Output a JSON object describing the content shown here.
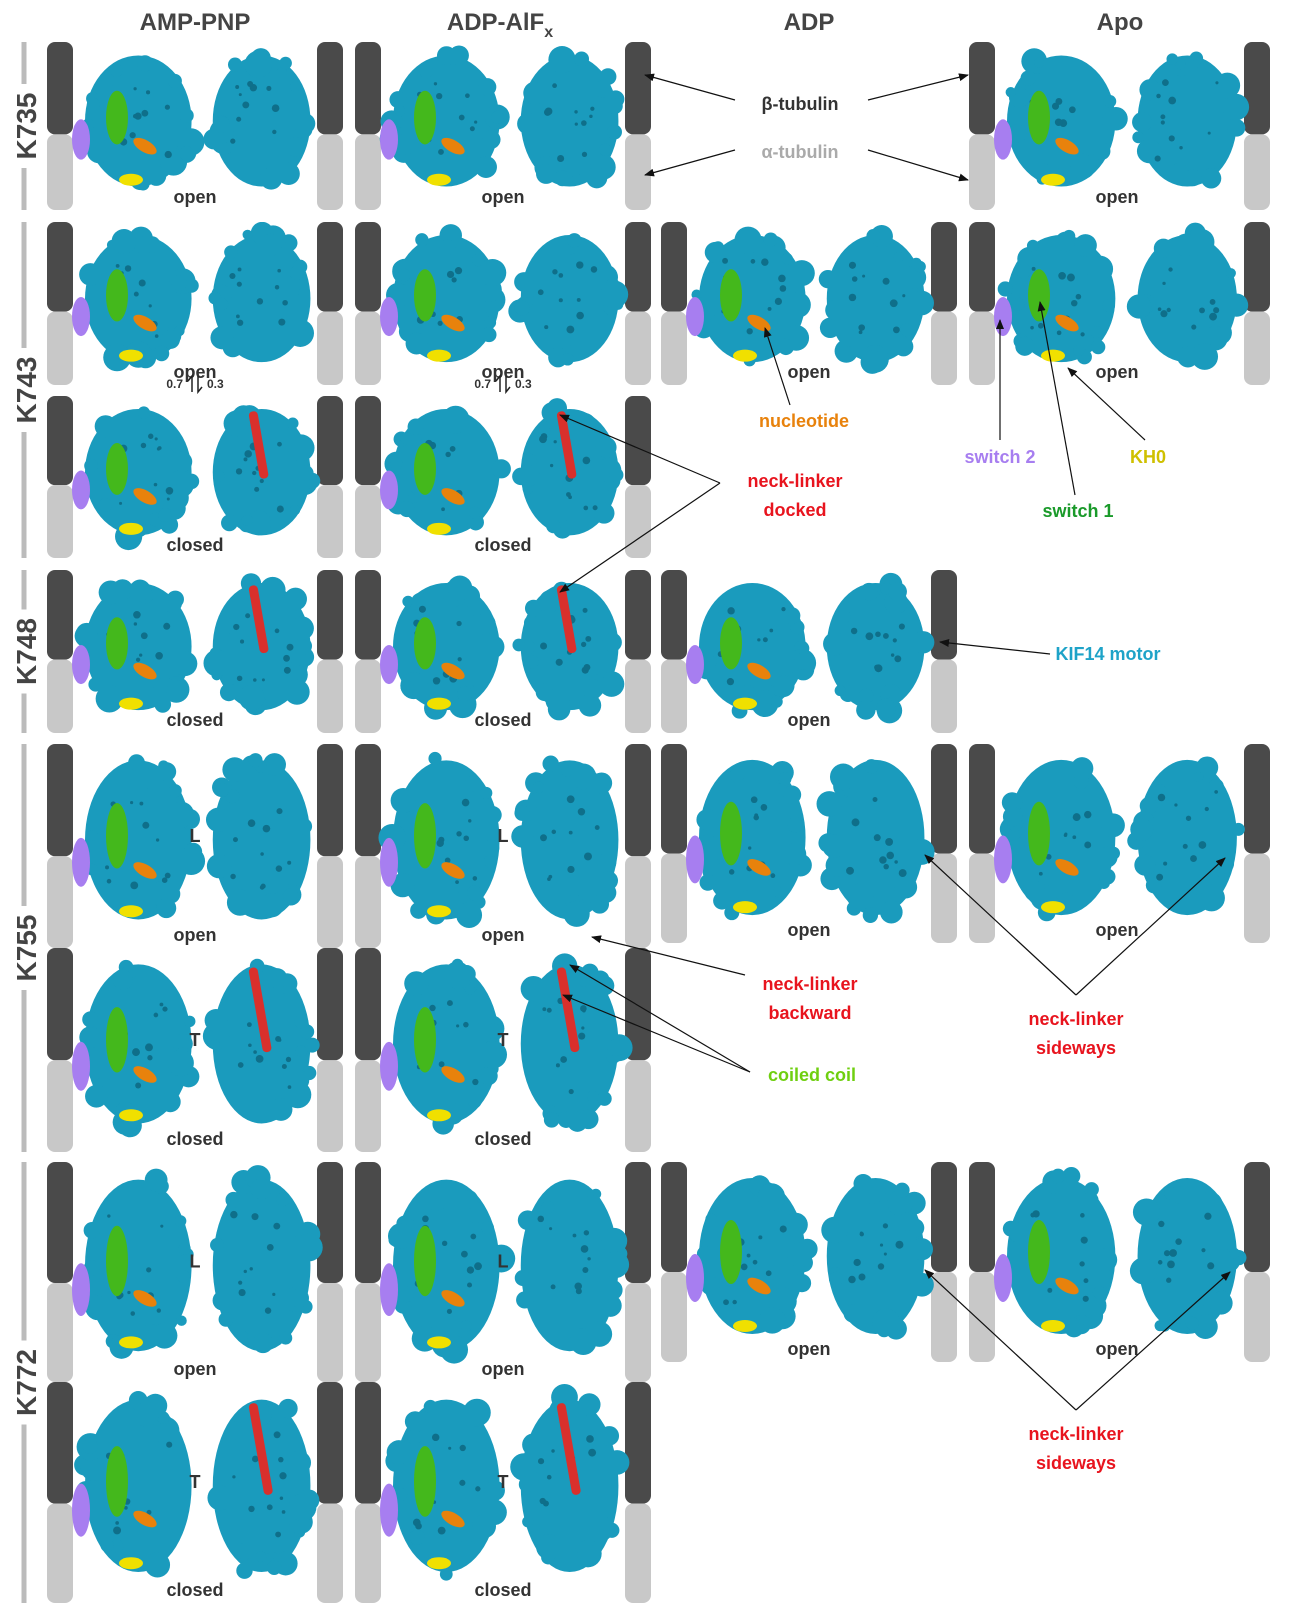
{
  "columns": [
    {
      "text": "AMP-PNP"
    },
    {
      "text": "ADP-AlF",
      "subscript": "x"
    },
    {
      "text": "ADP"
    },
    {
      "text": "Apo"
    }
  ],
  "rows": [
    {
      "label": "K735",
      "panels": [
        {
          "state": "open"
        },
        {
          "state": "open"
        },
        {
          "state": "open"
        }
      ]
    },
    {
      "label": "K743",
      "panels": [
        {
          "state": "open"
        },
        {
          "state": "open"
        },
        {
          "state": "open"
        },
        {
          "state": "open"
        },
        {
          "state": "closed"
        },
        {
          "state": "closed"
        }
      ],
      "ratios": [
        {
          "left": "0.7",
          "right": "0.3"
        },
        {
          "left": "0.7",
          "right": "0.3"
        }
      ]
    },
    {
      "label": "K748",
      "panels": [
        {
          "state": "closed"
        },
        {
          "state": "closed"
        },
        {
          "state": "open"
        }
      ]
    },
    {
      "label": "K755",
      "panels": [
        {
          "marker": "L",
          "state": "open"
        },
        {
          "marker": "T",
          "state": "closed"
        },
        {
          "marker": "L",
          "state": "open"
        },
        {
          "marker": "T",
          "state": "closed"
        },
        {
          "state": "open"
        },
        {
          "state": "open"
        }
      ]
    },
    {
      "label": "K772",
      "panels": [
        {
          "marker": "L",
          "state": "open"
        },
        {
          "marker": "T",
          "state": "closed"
        },
        {
          "marker": "L",
          "state": "open"
        },
        {
          "marker": "T",
          "state": "closed"
        },
        {
          "state": "open"
        },
        {
          "state": "open"
        }
      ]
    }
  ],
  "annotations": [
    {
      "lines": [
        "β-tubulin"
      ],
      "color": "#333333"
    },
    {
      "lines": [
        "α-tubulin"
      ],
      "color": "#aaaaaa"
    },
    {
      "lines": [
        "nucleotide"
      ],
      "color": "#e8820c"
    },
    {
      "lines": [
        "switch 2"
      ],
      "color": "#a77ef0"
    },
    {
      "lines": [
        "KH0"
      ],
      "color": "#cfc000"
    },
    {
      "lines": [
        "switch 1"
      ],
      "color": "#1a9a2a"
    },
    {
      "lines": [
        "neck-linker",
        "docked"
      ],
      "color": "#e8141e"
    },
    {
      "lines": [
        "KIF14 motor"
      ],
      "color": "#1ea3c8"
    },
    {
      "lines": [
        "neck-linker",
        "backward"
      ],
      "color": "#e8141e"
    },
    {
      "lines": [
        "coiled coil"
      ],
      "color": "#6fcf10"
    },
    {
      "lines": [
        "neck-linker",
        "sideways"
      ],
      "color": "#e8141e"
    },
    {
      "lines": [
        "neck-linker",
        "sideways"
      ],
      "color": "#e8141e"
    }
  ]
}
